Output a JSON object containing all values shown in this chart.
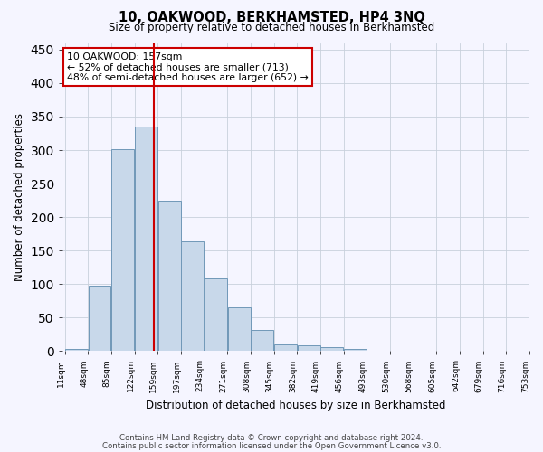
{
  "title": "10, OAKWOOD, BERKHAMSTED, HP4 3NQ",
  "subtitle": "Size of property relative to detached houses in Berkhamsted",
  "xlabel": "Distribution of detached houses by size in Berkhamsted",
  "ylabel": "Number of detached properties",
  "bar_color": "#c8d8ea",
  "bar_edge_color": "#7098b8",
  "bin_labels": [
    "11sqm",
    "48sqm",
    "85sqm",
    "122sqm",
    "159sqm",
    "197sqm",
    "234sqm",
    "271sqm",
    "308sqm",
    "345sqm",
    "382sqm",
    "419sqm",
    "456sqm",
    "493sqm",
    "530sqm",
    "568sqm",
    "605sqm",
    "642sqm",
    "679sqm",
    "716sqm",
    "753sqm"
  ],
  "bar_heights": [
    3,
    98,
    302,
    335,
    224,
    164,
    109,
    65,
    31,
    10,
    9,
    6,
    3,
    0,
    1,
    0,
    0,
    1,
    0,
    0
  ],
  "ylim": [
    0,
    460
  ],
  "yticks": [
    0,
    50,
    100,
    150,
    200,
    250,
    300,
    350,
    400,
    450
  ],
  "vline_position": 3.85,
  "vline_color": "#cc0000",
  "annotation_text": "10 OAKWOOD: 157sqm\n← 52% of detached houses are smaller (713)\n48% of semi-detached houses are larger (652) →",
  "annotation_box_color": "white",
  "annotation_box_edge": "#cc0000",
  "footer1": "Contains HM Land Registry data © Crown copyright and database right 2024.",
  "footer2": "Contains public sector information licensed under the Open Government Licence v3.0.",
  "background_color": "#f5f5ff",
  "grid_color": "#c8d0dc"
}
